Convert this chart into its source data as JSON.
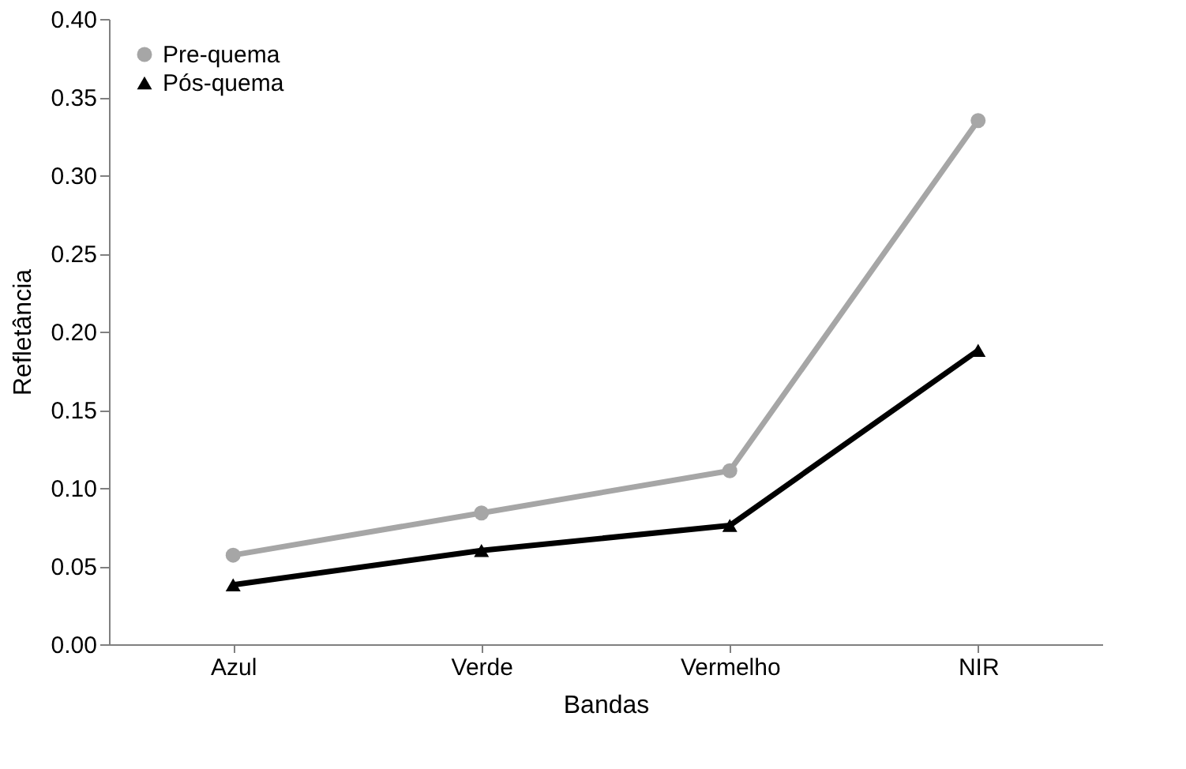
{
  "chart_data": {
    "type": "line",
    "xlabel": "Bandas",
    "ylabel": "Refletância",
    "categories": [
      "Azul",
      "Verde",
      "Vermelho",
      "NIR"
    ],
    "series": [
      {
        "name": "Pre-quema",
        "color": "#a6a6a6",
        "marker": "circle",
        "values": [
          0.057,
          0.084,
          0.111,
          0.335
        ]
      },
      {
        "name": "Pós-quema",
        "color": "#000000",
        "marker": "triangle",
        "values": [
          0.038,
          0.06,
          0.076,
          0.188
        ]
      }
    ],
    "ylim": [
      0,
      0.4
    ],
    "yticks": [
      {
        "value": 0,
        "label": "0.00"
      },
      {
        "value": 0.05,
        "label": "0.05"
      },
      {
        "value": 0.1,
        "label": "0.10"
      },
      {
        "value": 0.15,
        "label": "0.15"
      },
      {
        "value": 0.2,
        "label": "0.20"
      },
      {
        "value": 0.25,
        "label": "0.25"
      },
      {
        "value": 0.3,
        "label": "0.30"
      },
      {
        "value": 0.35,
        "label": "0.35"
      },
      {
        "value": 0.4,
        "label": "0.40"
      }
    ],
    "grid": false,
    "legend": "top left",
    "line_style": "solid"
  }
}
